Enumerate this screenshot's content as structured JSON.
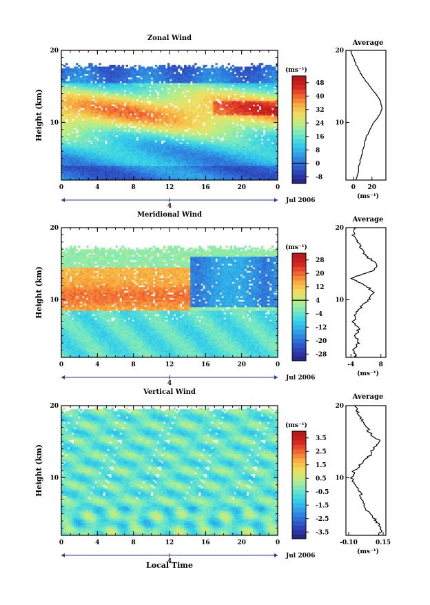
{
  "xlabel": "Local Time",
  "height_label": "Height (km)",
  "unit_label": "(ms⁻¹)",
  "avg_title": "Average",
  "date_label": "Jul 2006",
  "day_label": "4",
  "xticks": [
    "0",
    "4",
    "8",
    "12",
    "16",
    "20",
    "0"
  ],
  "yticks": [
    "10",
    "20"
  ],
  "colors": {
    "stops": [
      "#2a1f7a",
      "#2c3fb0",
      "#2f6ad6",
      "#2fa0e6",
      "#35d0e8",
      "#6ee6c8",
      "#b6ee88",
      "#f0e060",
      "#f8b040",
      "#f06030",
      "#d02020",
      "#b01818"
    ],
    "background": "#ffffff"
  },
  "chart_data": [
    {
      "type": "heatmap",
      "title": "Zonal Wind",
      "xlabel": "",
      "ylabel": "Height (km)",
      "x": [
        0,
        24
      ],
      "xticks": [
        "0",
        "4",
        "8",
        "12",
        "16",
        "20",
        "0"
      ],
      "ylim": [
        2,
        20
      ],
      "colorbar": {
        "ticks": [
          "48",
          "40",
          "32",
          "24",
          "16",
          "8",
          "0",
          "-8"
        ],
        "range": [
          -12,
          52
        ],
        "unit": "(ms⁻¹)"
      },
      "description_profile": "wind increases with height to a jet near 11-12 km",
      "average": {
        "title": "Average",
        "xticks": [
          "0",
          "20"
        ],
        "xlim": [
          -8,
          35
        ],
        "unit": "(ms⁻¹)",
        "height": [
          2,
          3,
          4,
          5,
          6,
          7,
          8,
          9,
          10,
          11,
          12,
          13,
          14,
          15,
          16,
          17,
          18,
          19,
          20
        ],
        "values": [
          3,
          5,
          6,
          8,
          10,
          12,
          14,
          18,
          22,
          28,
          31,
          29,
          24,
          18,
          12,
          7,
          3,
          0,
          -3
        ]
      }
    },
    {
      "type": "heatmap",
      "title": "Meridional Wind",
      "xlabel": "",
      "ylabel": "Height (km)",
      "x": [
        0,
        24
      ],
      "xticks": [
        "0",
        "4",
        "8",
        "12",
        "16",
        "20",
        "0"
      ],
      "ylim": [
        2,
        20
      ],
      "colorbar": {
        "ticks": [
          "28",
          "20",
          "12",
          "4",
          "-4",
          "-12",
          "-20",
          "-28"
        ],
        "range": [
          -32,
          32
        ],
        "unit": "(ms⁻¹)"
      },
      "average": {
        "title": "Average",
        "xticks": [
          "-4",
          "8"
        ],
        "xlim": [
          -6,
          10
        ],
        "unit": "(ms⁻¹)",
        "height": [
          2,
          3,
          4,
          5,
          6,
          7,
          8,
          9,
          10,
          11,
          12,
          13,
          14,
          15,
          16,
          17,
          18,
          19,
          20
        ],
        "values": [
          -2,
          -3,
          -1,
          -2,
          -1,
          -3,
          -2,
          0,
          3,
          5,
          2,
          -4,
          5,
          7,
          2,
          0,
          -1,
          -3,
          -2
        ]
      }
    },
    {
      "type": "heatmap",
      "title": "Vertical Wind",
      "xlabel": "Local Time",
      "ylabel": "Height (km)",
      "x": [
        0,
        24
      ],
      "xticks": [
        "0",
        "4",
        "8",
        "12",
        "16",
        "20",
        "0"
      ],
      "ylim": [
        2,
        20
      ],
      "colorbar": {
        "ticks": [
          "3.5",
          "2.5",
          "1.5",
          "0.5",
          "-0.5",
          "-1.5",
          "-2.5",
          "-3.5"
        ],
        "range": [
          -4,
          4
        ],
        "unit": "(ms⁻¹)"
      },
      "average": {
        "title": "Average",
        "xticks": [
          "-0.10",
          "0.15"
        ],
        "xlim": [
          -0.12,
          0.17
        ],
        "unit": "(ms⁻¹)",
        "height": [
          2,
          3,
          4,
          5,
          6,
          7,
          8,
          9,
          10,
          11,
          12,
          13,
          14,
          15,
          16,
          17,
          18,
          19,
          20
        ],
        "values": [
          0.12,
          0.14,
          0.1,
          0.05,
          0.02,
          0.0,
          -0.02,
          -0.05,
          -0.08,
          -0.06,
          0.0,
          0.05,
          0.08,
          0.13,
          0.06,
          0.03,
          0.0,
          -0.03,
          -0.05
        ]
      }
    }
  ]
}
